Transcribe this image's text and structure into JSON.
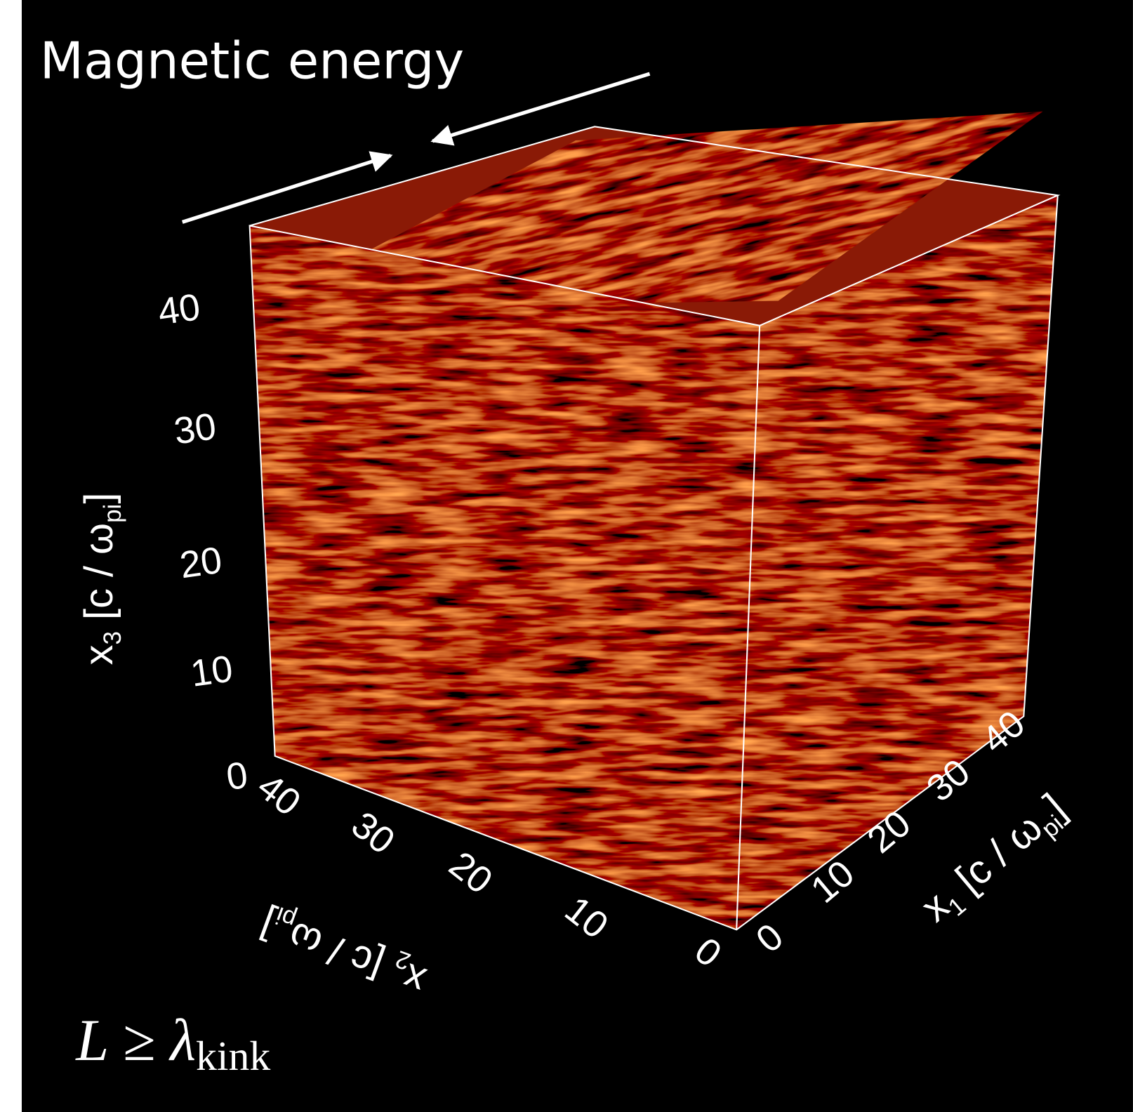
{
  "figure": {
    "title": "Magnetic energy",
    "axes": {
      "x3": {
        "ticks": [
          "0",
          "10",
          "20",
          "30",
          "40"
        ],
        "label": {
          "base": "x",
          "sub": "3",
          "unit": " [c / ω",
          "unit_sub": "pi",
          "close": "]"
        }
      },
      "x2": {
        "ticks": [
          "0",
          "10",
          "20",
          "30",
          "40"
        ],
        "label": {
          "base": "x",
          "sub": "2",
          "unit": " [c / ω",
          "unit_sub": "pi",
          "close": "]"
        }
      },
      "x1": {
        "ticks": [
          "0",
          "10",
          "20",
          "30",
          "40"
        ],
        "label": {
          "base": "x",
          "sub": "1",
          "unit": " [c / ω",
          "unit_sub": "pi",
          "close": "]"
        }
      }
    },
    "annotation": {
      "lhs": "L ≥ λ",
      "sub": "kink"
    }
  }
}
